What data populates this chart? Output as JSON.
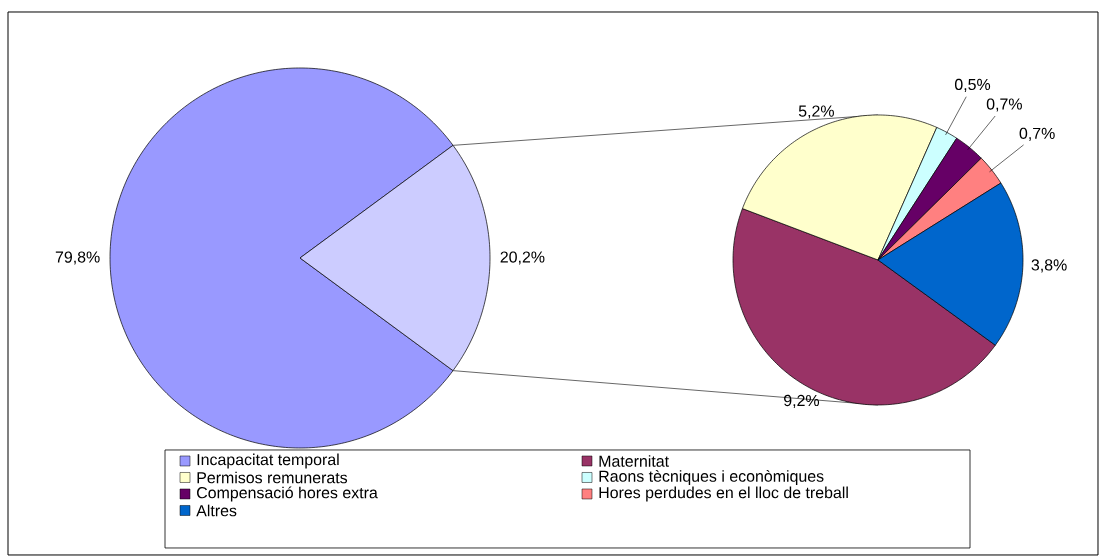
{
  "chart_data": [
    {
      "type": "pie",
      "categories": [
        "Incapacitat temporal",
        null
      ],
      "values": [
        79.8,
        20.2
      ],
      "colors": [
        "#9999ff",
        "#ccccff"
      ],
      "value_labels": [
        "79,8%",
        "20,2%"
      ],
      "legend": "bottom"
    },
    {
      "type": "pie",
      "categories": [
        "Maternitat",
        "Permisos remunerats",
        "Raons tècniques i econòmiques",
        "Compensació hores extra",
        "Hores perdudes en el lloc de treball",
        "Altres"
      ],
      "values": [
        9.2,
        5.2,
        0.5,
        0.7,
        0.7,
        3.8
      ],
      "colors": [
        "#993366",
        "#ffffcc",
        "#ccffff",
        "#660066",
        "#ff8080",
        "#0066cc"
      ],
      "value_labels": [
        "9,2%",
        "5,2%",
        "0,5%",
        "0,7%",
        "0,7%",
        "3,8%"
      ],
      "legend": "bottom"
    }
  ]
}
